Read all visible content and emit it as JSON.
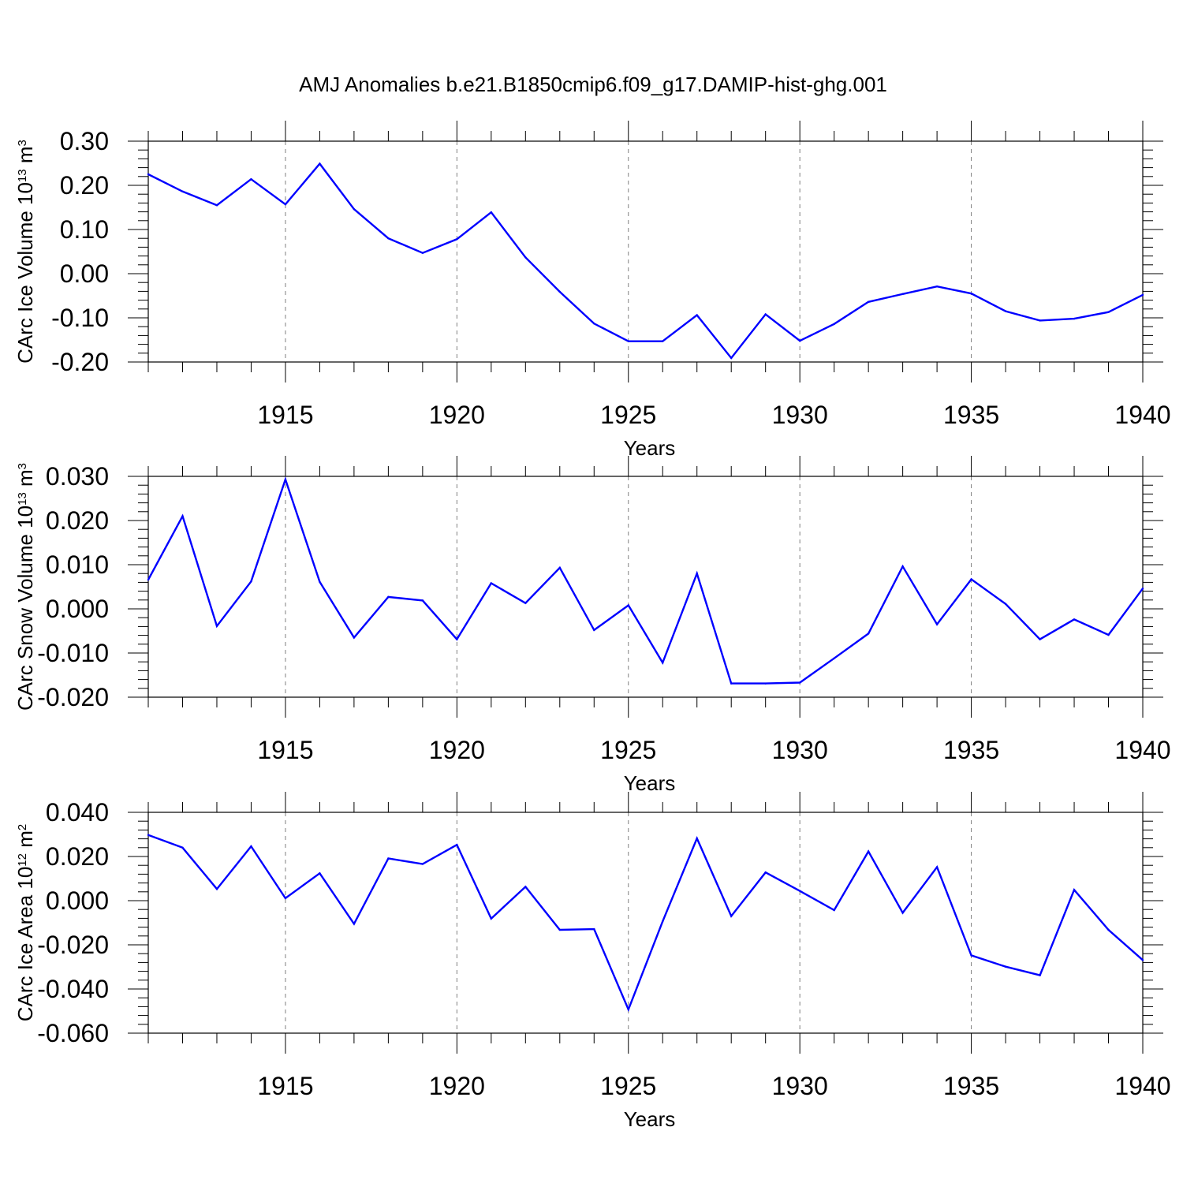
{
  "title": "AMJ Anomalies b.e21.B1850cmip6.f09_g17.DAMIP-hist-ghg.001",
  "colors": {
    "line": "#0000ff",
    "axes": "#000000",
    "grid": "#808080"
  },
  "chart_data": [
    {
      "type": "line",
      "xlabel": "Years",
      "ylabel": {
        "text": "CArc Ice Volume 10",
        "sup": "13",
        "unit": " m",
        "unit_sup": "3"
      },
      "xlim": [
        1911,
        1940
      ],
      "ylim": [
        -0.2,
        0.3
      ],
      "xticks": [
        1915,
        1920,
        1925,
        1930,
        1935,
        1940
      ],
      "xtick_labels": [
        "1915",
        "1920",
        "1925",
        "1930",
        "1935",
        "1940"
      ],
      "yticks": [
        -0.2,
        -0.1,
        0.0,
        0.1,
        0.2,
        0.3
      ],
      "ytick_labels": [
        "-0.20",
        "-0.10",
        "0.00",
        "0.10",
        "0.20",
        "0.30"
      ],
      "grid": "vertical dashed at labeled years",
      "x": [
        1911,
        1912,
        1913,
        1914,
        1915,
        1916,
        1917,
        1918,
        1919,
        1920,
        1921,
        1922,
        1923,
        1924,
        1925,
        1926,
        1927,
        1928,
        1929,
        1930,
        1931,
        1932,
        1933,
        1934,
        1935,
        1936,
        1937,
        1938,
        1939,
        1940
      ],
      "values": [
        0.225,
        0.186,
        0.155,
        0.214,
        0.157,
        0.249,
        0.146,
        0.08,
        0.047,
        0.078,
        0.139,
        0.037,
        -0.041,
        -0.113,
        -0.153,
        -0.153,
        -0.094,
        -0.191,
        -0.092,
        -0.152,
        -0.114,
        -0.064,
        -0.046,
        -0.029,
        -0.045,
        -0.085,
        -0.106,
        -0.102,
        -0.087,
        -0.048
      ]
    },
    {
      "type": "line",
      "xlabel": "Years",
      "ylabel": {
        "text": "CArc Snow Volume 10",
        "sup": "13",
        "unit": " m",
        "unit_sup": "3"
      },
      "xlim": [
        1911,
        1940
      ],
      "ylim": [
        -0.02,
        0.03
      ],
      "xticks": [
        1915,
        1920,
        1925,
        1930,
        1935,
        1940
      ],
      "xtick_labels": [
        "1915",
        "1920",
        "1925",
        "1930",
        "1935",
        "1940"
      ],
      "yticks": [
        -0.02,
        -0.01,
        0.0,
        0.01,
        0.02,
        0.03
      ],
      "ytick_labels": [
        "-0.020",
        "-0.010",
        "0.000",
        "0.010",
        "0.020",
        "0.030"
      ],
      "grid": "vertical dashed at labeled years",
      "x": [
        1911,
        1912,
        1913,
        1914,
        1915,
        1916,
        1917,
        1918,
        1919,
        1920,
        1921,
        1922,
        1923,
        1924,
        1925,
        1926,
        1927,
        1928,
        1929,
        1930,
        1931,
        1932,
        1933,
        1934,
        1935,
        1936,
        1937,
        1938,
        1939,
        1940
      ],
      "values": [
        0.0066,
        0.021,
        -0.0039,
        0.0062,
        0.0293,
        0.0061,
        -0.0065,
        0.0027,
        0.0019,
        -0.0069,
        0.0058,
        0.0013,
        0.0093,
        -0.0048,
        0.0008,
        -0.0122,
        0.008,
        -0.0169,
        -0.0169,
        -0.0167,
        -0.0112,
        -0.0056,
        0.0096,
        -0.0035,
        0.0067,
        0.0011,
        -0.0069,
        -0.0024,
        -0.0059,
        0.0046
      ]
    },
    {
      "type": "line",
      "xlabel": "Years",
      "ylabel": {
        "text": "CArc Ice Area 10",
        "sup": "12",
        "unit": " m",
        "unit_sup": "2"
      },
      "xlim": [
        1911,
        1940
      ],
      "ylim": [
        -0.06,
        0.04
      ],
      "xticks": [
        1915,
        1920,
        1925,
        1930,
        1935,
        1940
      ],
      "xtick_labels": [
        "1915",
        "1920",
        "1925",
        "1930",
        "1935",
        "1940"
      ],
      "yticks": [
        -0.06,
        -0.04,
        -0.02,
        0.0,
        0.02,
        0.04
      ],
      "ytick_labels": [
        "-0.060",
        "-0.040",
        "-0.020",
        "0.000",
        "0.020",
        "0.040"
      ],
      "grid": "vertical dashed at labeled years",
      "x": [
        1911,
        1912,
        1913,
        1914,
        1915,
        1916,
        1917,
        1918,
        1919,
        1920,
        1921,
        1922,
        1923,
        1924,
        1925,
        1926,
        1927,
        1928,
        1929,
        1930,
        1931,
        1932,
        1933,
        1934,
        1935,
        1936,
        1937,
        1938,
        1939,
        1940
      ],
      "values": [
        0.0297,
        0.024,
        0.0053,
        0.0246,
        0.0011,
        0.0124,
        -0.0105,
        0.0191,
        0.0166,
        0.0253,
        -0.0081,
        0.0063,
        -0.0132,
        -0.0129,
        -0.0493,
        -0.0094,
        0.0282,
        -0.007,
        0.0128,
        0.0044,
        -0.0043,
        0.0223,
        -0.0055,
        0.0152,
        -0.0248,
        -0.0299,
        -0.0338,
        0.0049,
        -0.0132,
        -0.0269
      ]
    }
  ]
}
